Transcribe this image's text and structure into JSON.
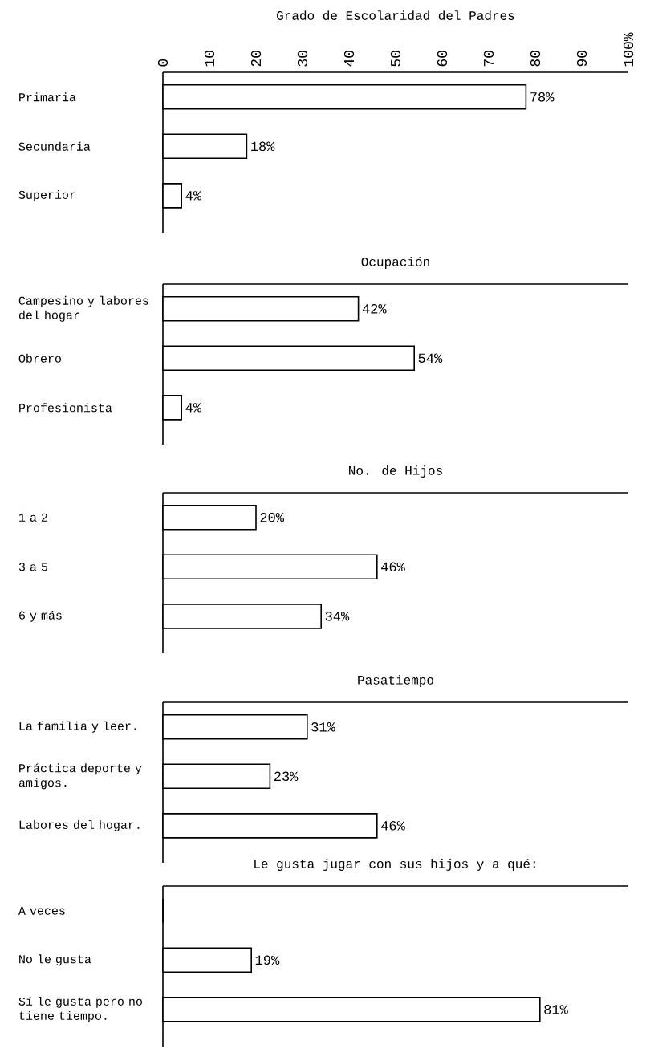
{
  "chart_data": [
    {
      "type": "bar",
      "orientation": "horizontal",
      "title": "Grado de Escolaridad del Padres",
      "categories": [
        "Primaria",
        "Secundaria",
        "Superior"
      ],
      "values": [
        78,
        18,
        4
      ],
      "value_labels": [
        "78%",
        "18%",
        "4%"
      ],
      "color": "#ffffff",
      "xlim": [
        0,
        100
      ],
      "xticks": [
        0,
        10,
        20,
        30,
        40,
        50,
        60,
        70,
        80,
        90,
        {
          "value": 100,
          "label": "100%"
        }
      ]
    },
    {
      "type": "bar",
      "orientation": "horizontal",
      "title": "Ocupación",
      "categories": [
        "Campesino y labores del hogar",
        "Obrero",
        "Profesionista"
      ],
      "values": [
        42,
        54,
        4
      ],
      "value_labels": [
        "42%",
        "54%",
        "4%"
      ],
      "color": "#ffffff",
      "xlim": [
        0,
        100
      ],
      "tick_labels": "y"
    },
    {
      "type": "bar",
      "orientation": "horizontal",
      "title": "No. de Hijos",
      "categories": [
        "1 a 2",
        "3 a 5",
        "6 y más"
      ],
      "values": [
        20,
        46,
        34
      ],
      "value_labels": [
        "20%",
        "46%",
        "34%"
      ],
      "color": "#ffffff",
      "xlim": [
        0,
        100
      ],
      "tick_labels": "y"
    },
    {
      "type": "bar",
      "orientation": "horizontal",
      "title": "Pasatiempo",
      "categories": [
        "La familia y leer.",
        "Práctica deporte y amigos.",
        "Labores del hogar."
      ],
      "values": [
        31,
        23,
        46
      ],
      "value_labels": [
        "31%",
        "23%",
        "46%"
      ],
      "color": "#ffffff",
      "xlim": [
        0,
        100
      ],
      "tick_labels": "y"
    },
    {
      "type": "bar",
      "orientation": "horizontal",
      "title": "Le gusta jugar con sus hijos y a qué:",
      "categories": [
        "A veces",
        "No le gusta",
        "Sí le gusta pero no tiene tiempo."
      ],
      "values": [
        0,
        19,
        81
      ],
      "value_labels": [
        null,
        "19%",
        "81%"
      ],
      "color": "#ffffff",
      "xlim": [
        0,
        100
      ],
      "tick_labels": "y"
    }
  ]
}
